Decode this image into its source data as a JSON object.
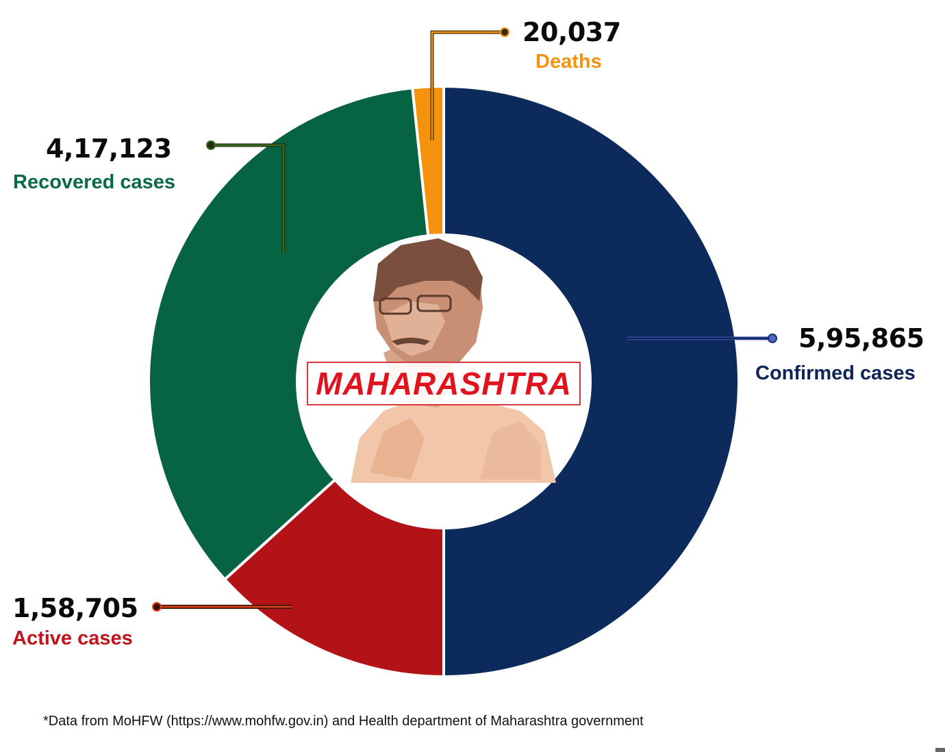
{
  "chart_data": {
    "type": "pie",
    "variant": "donut",
    "title": "",
    "center_label": "MAHARASHTRA",
    "segments": [
      {
        "name": "Confirmed cases",
        "value": 595865,
        "display": "5,95,865",
        "color": "#0c2a5b",
        "start_deg": 0,
        "end_deg": 180
      },
      {
        "name": "Active cases",
        "value": 158705,
        "display": "1,58,705",
        "color": "#b31217",
        "start_deg": 180,
        "end_deg": 227.9
      },
      {
        "name": "Recovered cases",
        "value": 417123,
        "display": "4,17,123",
        "color": "#076443",
        "start_deg": 227.9,
        "end_deg": 353.9
      },
      {
        "name": "Deaths",
        "value": 20037,
        "display": "20,037",
        "color": "#f5930f",
        "start_deg": 353.9,
        "end_deg": 360
      }
    ],
    "note": "Confirmed cases occupy half the ring; Active + Recovered + Deaths split the other half (their sum equals Confirmed).",
    "legend": "callout labels around ring",
    "grid": false
  },
  "callouts": {
    "deaths": {
      "value": "20,037",
      "label": "Deaths",
      "color": "#f5930f"
    },
    "recovered": {
      "value": "4,17,123",
      "label": "Recovered cases",
      "color": "#0a6a45"
    },
    "confirmed": {
      "value": "5,95,865",
      "label": "Confirmed cases",
      "color": "#0e2456"
    },
    "active": {
      "value": "1,58,705",
      "label": "Active cases",
      "color": "#c0141c"
    }
  },
  "center": {
    "state_name": "MAHARASHTRA",
    "image": "portrait-illustration"
  },
  "footnote": "*Data from MoHFW (https://www.mohfw.gov.in) and Health department of Maharashtra government"
}
